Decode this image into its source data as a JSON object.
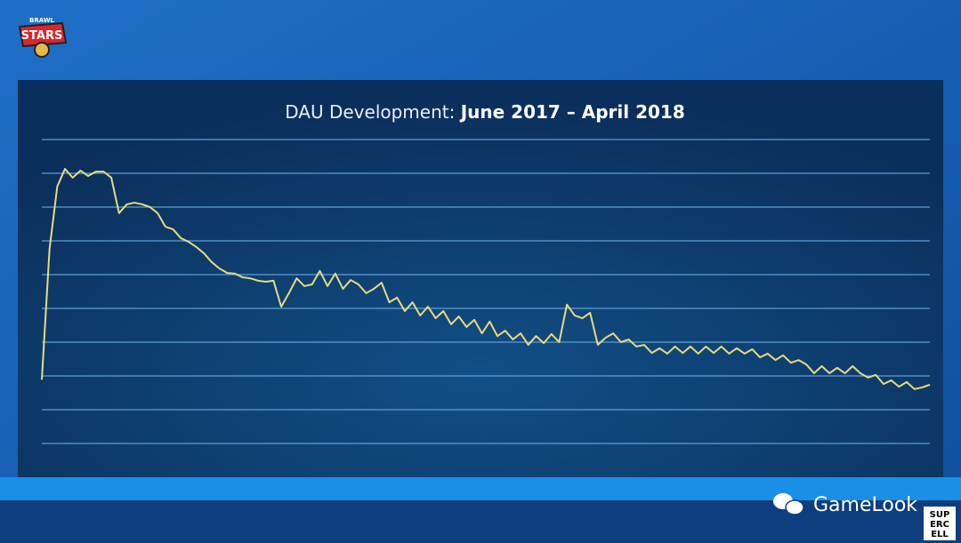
{
  "logo_text": [
    "BRAWL",
    "STARS"
  ],
  "watermark": "GameLook",
  "corner_logo": [
    "SUP",
    "ERC",
    "ELL"
  ],
  "chart_data": {
    "type": "line",
    "title": "DAU Development:",
    "subtitle": "June 2017 – April 2018",
    "color": "#e9da7c",
    "grid": true,
    "grid_color": "#5d9fd6",
    "ylim": [
      0,
      9
    ],
    "gridlines": [
      0,
      1,
      2,
      3,
      4,
      5,
      6,
      7,
      8,
      9
    ],
    "values": [
      1.89,
      5.76,
      7.61,
      8.13,
      7.87,
      8.08,
      7.92,
      8.05,
      8.05,
      7.87,
      6.82,
      7.08,
      7.13,
      7.08,
      7.0,
      6.82,
      6.42,
      6.34,
      6.08,
      5.97,
      5.82,
      5.63,
      5.37,
      5.18,
      5.05,
      5.03,
      4.92,
      4.89,
      4.82,
      4.79,
      4.82,
      4.05,
      4.45,
      4.89,
      4.66,
      4.71,
      5.11,
      4.66,
      5.03,
      4.58,
      4.84,
      4.71,
      4.45,
      4.58,
      4.76,
      4.18,
      4.32,
      3.92,
      4.18,
      3.79,
      4.05,
      3.71,
      3.92,
      3.53,
      3.76,
      3.45,
      3.66,
      3.26,
      3.61,
      3.18,
      3.34,
      3.08,
      3.26,
      2.92,
      3.18,
      2.97,
      3.24,
      3.0,
      4.11,
      3.79,
      3.71,
      3.87,
      2.92,
      3.13,
      3.26,
      3.0,
      3.08,
      2.87,
      2.92,
      2.68,
      2.82,
      2.66,
      2.87,
      2.68,
      2.87,
      2.66,
      2.87,
      2.68,
      2.87,
      2.66,
      2.82,
      2.66,
      2.79,
      2.55,
      2.66,
      2.47,
      2.61,
      2.39,
      2.47,
      2.34,
      2.08,
      2.29,
      2.08,
      2.24,
      2.08,
      2.29,
      2.08,
      1.95,
      2.03,
      1.76,
      1.87,
      1.68,
      1.82,
      1.61,
      1.66,
      1.74
    ]
  }
}
